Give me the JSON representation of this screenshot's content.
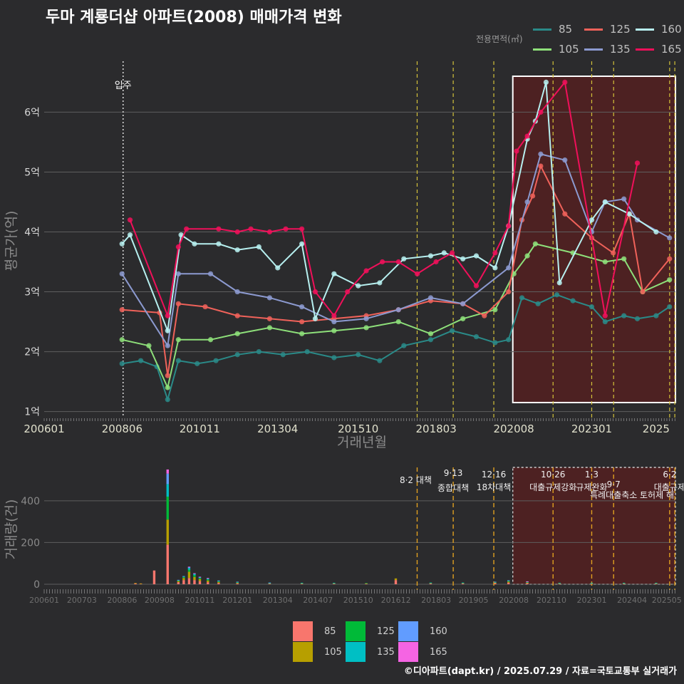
{
  "title": "두마 계룡더샵 아파트(2008) 매매가격 변화",
  "footer": "©디아파트(dapt.kr) / 2025.07.29 / 자료=국토교통부 실거래가",
  "legend_top": {
    "title": "전용면적(㎡)",
    "items": [
      {
        "label": "85",
        "color": "#2a8a88"
      },
      {
        "label": "125",
        "color": "#f0625a"
      },
      {
        "label": "160",
        "color": "#b7f0f0"
      },
      {
        "label": "105",
        "color": "#8ee07a"
      },
      {
        "label": "135",
        "color": "#8c9ad0"
      },
      {
        "label": "165",
        "color": "#f0105a"
      }
    ]
  },
  "legend_bottom": {
    "items": [
      {
        "label": "85",
        "color": "#f8766d"
      },
      {
        "label": "125",
        "color": "#00ba38"
      },
      {
        "label": "160",
        "color": "#619cff"
      },
      {
        "label": "105",
        "color": "#b79f00"
      },
      {
        "label": "135",
        "color": "#00bfc4"
      },
      {
        "label": "165",
        "color": "#f564e3"
      }
    ]
  },
  "chart_data": [
    {
      "type": "line",
      "xlabel": "거래년월",
      "ylabel": "평균가(억)",
      "x_ticks": [
        "200601",
        "200806",
        "201011",
        "201304",
        "201510",
        "201803",
        "202008",
        "202301",
        "2025"
      ],
      "y_ticks": [
        "1억",
        "2억",
        "3억",
        "4억",
        "5억",
        "6억"
      ],
      "ylim": [
        1,
        6.6
      ],
      "xlim": [
        "2006-01",
        "2025-08"
      ],
      "grid": true,
      "event_labels": [
        "입주"
      ],
      "series": [
        {
          "name": "85",
          "points": [
            [
              "2008-06",
              1.8
            ],
            [
              "2009-01",
              1.85
            ],
            [
              "2009-07",
              1.75
            ],
            [
              "2009-11",
              1.2
            ],
            [
              "2010-03",
              1.85
            ],
            [
              "2010-10",
              1.8
            ],
            [
              "2011-05",
              1.85
            ],
            [
              "2012-01",
              1.95
            ],
            [
              "2012-09",
              2.0
            ],
            [
              "2013-06",
              1.95
            ],
            [
              "2014-03",
              2.0
            ],
            [
              "2015-01",
              1.9
            ],
            [
              "2015-10",
              1.95
            ],
            [
              "2016-06",
              1.85
            ],
            [
              "2017-03",
              2.1
            ],
            [
              "2018-01",
              2.2
            ],
            [
              "2018-09",
              2.35
            ],
            [
              "2019-06",
              2.25
            ],
            [
              "2020-01",
              2.15
            ],
            [
              "2020-06",
              2.2
            ],
            [
              "2020-11",
              2.9
            ],
            [
              "2021-05",
              2.8
            ],
            [
              "2021-12",
              2.95
            ],
            [
              "2022-06",
              2.85
            ],
            [
              "2023-01",
              2.75
            ],
            [
              "2023-06",
              2.5
            ],
            [
              "2024-01",
              2.6
            ],
            [
              "2024-06",
              2.55
            ],
            [
              "2025-01",
              2.6
            ],
            [
              "2025-06",
              2.75
            ]
          ]
        },
        {
          "name": "105",
          "points": [
            [
              "2008-06",
              2.2
            ],
            [
              "2009-04",
              2.1
            ],
            [
              "2009-11",
              1.4
            ],
            [
              "2010-03",
              2.2
            ],
            [
              "2011-03",
              2.2
            ],
            [
              "2012-01",
              2.3
            ],
            [
              "2013-01",
              2.4
            ],
            [
              "2014-01",
              2.3
            ],
            [
              "2015-01",
              2.35
            ],
            [
              "2016-01",
              2.4
            ],
            [
              "2017-01",
              2.5
            ],
            [
              "2018-01",
              2.3
            ],
            [
              "2019-01",
              2.55
            ],
            [
              "2020-01",
              2.7
            ],
            [
              "2020-08",
              3.3
            ],
            [
              "2021-01",
              3.6
            ],
            [
              "2021-04",
              3.8
            ],
            [
              "2022-06",
              3.65
            ],
            [
              "2023-06",
              3.5
            ],
            [
              "2024-01",
              3.55
            ],
            [
              "2024-08",
              3.0
            ],
            [
              "2025-06",
              3.2
            ]
          ]
        },
        {
          "name": "125",
          "points": [
            [
              "2008-06",
              2.7
            ],
            [
              "2009-08",
              2.65
            ],
            [
              "2009-11",
              1.6
            ],
            [
              "2010-03",
              2.8
            ],
            [
              "2011-01",
              2.75
            ],
            [
              "2012-01",
              2.6
            ],
            [
              "2013-01",
              2.55
            ],
            [
              "2014-01",
              2.5
            ],
            [
              "2015-01",
              2.55
            ],
            [
              "2016-01",
              2.6
            ],
            [
              "2017-01",
              2.7
            ],
            [
              "2018-01",
              2.85
            ],
            [
              "2019-01",
              2.8
            ],
            [
              "2019-09",
              2.6
            ],
            [
              "2020-06",
              3.0
            ],
            [
              "2020-11",
              4.2
            ],
            [
              "2021-03",
              4.6
            ],
            [
              "2021-06",
              5.1
            ],
            [
              "2022-03",
              4.3
            ],
            [
              "2023-01",
              3.9
            ],
            [
              "2023-09",
              3.65
            ],
            [
              "2024-03",
              4.3
            ],
            [
              "2024-08",
              3.0
            ],
            [
              "2025-06",
              3.55
            ]
          ]
        },
        {
          "name": "135",
          "points": [
            [
              "2008-06",
              3.3
            ],
            [
              "2009-11",
              2.1
            ],
            [
              "2010-03",
              3.3
            ],
            [
              "2011-03",
              3.3
            ],
            [
              "2012-01",
              3.0
            ],
            [
              "2013-01",
              2.9
            ],
            [
              "2014-01",
              2.75
            ],
            [
              "2015-01",
              2.5
            ],
            [
              "2016-01",
              2.55
            ],
            [
              "2017-01",
              2.7
            ],
            [
              "2018-01",
              2.9
            ],
            [
              "2019-01",
              2.8
            ],
            [
              "2020-06",
              3.4
            ],
            [
              "2021-01",
              4.5
            ],
            [
              "2021-06",
              5.3
            ],
            [
              "2022-03",
              5.2
            ],
            [
              "2023-01",
              4.0
            ],
            [
              "2023-06",
              4.5
            ],
            [
              "2024-01",
              4.55
            ],
            [
              "2024-06",
              4.2
            ],
            [
              "2025-06",
              3.9
            ]
          ]
        },
        {
          "name": "160",
          "points": [
            [
              "2008-06",
              3.8
            ],
            [
              "2008-09",
              3.95
            ],
            [
              "2009-11",
              2.35
            ],
            [
              "2010-04",
              3.95
            ],
            [
              "2010-09",
              3.8
            ],
            [
              "2011-06",
              3.8
            ],
            [
              "2012-01",
              3.7
            ],
            [
              "2012-09",
              3.75
            ],
            [
              "2013-04",
              3.4
            ],
            [
              "2014-01",
              3.8
            ],
            [
              "2014-06",
              2.55
            ],
            [
              "2015-01",
              3.3
            ],
            [
              "2015-10",
              3.1
            ],
            [
              "2016-06",
              3.15
            ],
            [
              "2017-03",
              3.55
            ],
            [
              "2018-01",
              3.6
            ],
            [
              "2018-06",
              3.65
            ],
            [
              "2019-01",
              3.55
            ],
            [
              "2019-06",
              3.6
            ],
            [
              "2020-01",
              3.4
            ],
            [
              "2020-06",
              4.1
            ],
            [
              "2021-01",
              5.55
            ],
            [
              "2021-04",
              5.85
            ],
            [
              "2021-08",
              6.5
            ],
            [
              "2022-01",
              3.15
            ],
            [
              "2023-01",
              4.2
            ],
            [
              "2023-06",
              4.5
            ],
            [
              "2024-03",
              4.3
            ],
            [
              "2025-01",
              4.0
            ]
          ]
        },
        {
          "name": "165",
          "points": [
            [
              "2008-09",
              4.2
            ],
            [
              "2009-11",
              2.6
            ],
            [
              "2010-03",
              3.75
            ],
            [
              "2010-06",
              4.05
            ],
            [
              "2011-06",
              4.05
            ],
            [
              "2012-01",
              4.0
            ],
            [
              "2012-06",
              4.05
            ],
            [
              "2013-01",
              4.0
            ],
            [
              "2013-07",
              4.05
            ],
            [
              "2014-01",
              4.05
            ],
            [
              "2014-06",
              3.0
            ],
            [
              "2015-01",
              2.6
            ],
            [
              "2015-06",
              3.0
            ],
            [
              "2016-01",
              3.35
            ],
            [
              "2016-07",
              3.5
            ],
            [
              "2017-01",
              3.5
            ],
            [
              "2017-08",
              3.3
            ],
            [
              "2018-03",
              3.5
            ],
            [
              "2018-09",
              3.65
            ],
            [
              "2019-06",
              3.1
            ],
            [
              "2020-01",
              3.65
            ],
            [
              "2020-06",
              4.1
            ],
            [
              "2020-09",
              5.35
            ],
            [
              "2021-01",
              5.6
            ],
            [
              "2021-06",
              6.0
            ],
            [
              "2022-03",
              6.5
            ],
            [
              "2023-06",
              2.6
            ],
            [
              "2024-06",
              5.15
            ]
          ]
        }
      ]
    },
    {
      "type": "bar",
      "xlabel": "",
      "ylabel": "거래량(건)",
      "x_ticks": [
        "200601",
        "200703",
        "200806",
        "200908",
        "201011",
        "201201",
        "201304",
        "201407",
        "201510",
        "201612",
        "201803",
        "201905",
        "202008",
        "202110",
        "202301",
        "202404",
        "202505"
      ],
      "y_ticks": [
        "0",
        "200",
        "400"
      ],
      "ylim": [
        0,
        560
      ],
      "stacked": true,
      "policy_labels": [
        [
          "8·2 대책"
        ],
        [
          "9·13",
          "종합대책"
        ],
        [
          "12·16",
          "18차대책"
        ],
        [
          "10·26",
          "대출규제강화"
        ],
        [
          "1·3",
          "규제완화"
        ],
        [
          "9·7",
          "특례대출축소"
        ],
        [
          "6·2",
          "대출규제"
        ]
      ],
      "policy_extra_text": "토허제 해",
      "bars": [
        {
          "x": "2008-11",
          "values": [
            4,
            2,
            0,
            0,
            0,
            0
          ]
        },
        {
          "x": "2009-01",
          "values": [
            3,
            1,
            0,
            0,
            0,
            0
          ]
        },
        {
          "x": "2009-06",
          "values": [
            66,
            0,
            0,
            0,
            0,
            0
          ]
        },
        {
          "x": "2009-11",
          "values": [
            190,
            120,
            110,
            60,
            50,
            20
          ]
        },
        {
          "x": "2010-03",
          "values": [
            10,
            5,
            3,
            2,
            1,
            0
          ]
        },
        {
          "x": "2010-05",
          "values": [
            20,
            10,
            5,
            3,
            1,
            0
          ]
        },
        {
          "x": "2010-07",
          "values": [
            30,
            30,
            10,
            8,
            4,
            2
          ]
        },
        {
          "x": "2010-09",
          "values": [
            20,
            15,
            8,
            6,
            3,
            1
          ]
        },
        {
          "x": "2010-11",
          "values": [
            15,
            10,
            5,
            3,
            2,
            1
          ]
        },
        {
          "x": "2011-02",
          "values": [
            10,
            8,
            5,
            4,
            2,
            1
          ]
        },
        {
          "x": "2011-06",
          "values": [
            6,
            5,
            3,
            3,
            1,
            0
          ]
        },
        {
          "x": "2012-01",
          "values": [
            4,
            3,
            2,
            2,
            1,
            0
          ]
        },
        {
          "x": "2013-01",
          "values": [
            3,
            2,
            1,
            1,
            1,
            0
          ]
        },
        {
          "x": "2014-01",
          "values": [
            3,
            2,
            1,
            1,
            0,
            0
          ]
        },
        {
          "x": "2015-01",
          "values": [
            3,
            2,
            1,
            1,
            0,
            0
          ]
        },
        {
          "x": "2016-01",
          "values": [
            3,
            2,
            1,
            0,
            0,
            0
          ]
        },
        {
          "x": "2016-12",
          "values": [
            20,
            8,
            0,
            0,
            0,
            0
          ]
        },
        {
          "x": "2018-01",
          "values": [
            4,
            2,
            1,
            1,
            0,
            0
          ]
        },
        {
          "x": "2019-01",
          "values": [
            4,
            2,
            1,
            1,
            0,
            0
          ]
        },
        {
          "x": "2020-01",
          "values": [
            5,
            3,
            2,
            1,
            1,
            0
          ]
        },
        {
          "x": "2020-06",
          "values": [
            8,
            5,
            3,
            2,
            1,
            0
          ]
        },
        {
          "x": "2021-01",
          "values": [
            5,
            3,
            2,
            2,
            1,
            1
          ]
        },
        {
          "x": "2022-01",
          "values": [
            3,
            2,
            1,
            1,
            0,
            0
          ]
        },
        {
          "x": "2023-01",
          "values": [
            3,
            2,
            1,
            1,
            0,
            0
          ]
        },
        {
          "x": "2024-01",
          "values": [
            3,
            2,
            1,
            1,
            0,
            0
          ]
        },
        {
          "x": "2025-01",
          "values": [
            3,
            2,
            1,
            1,
            0,
            0
          ]
        }
      ]
    }
  ]
}
